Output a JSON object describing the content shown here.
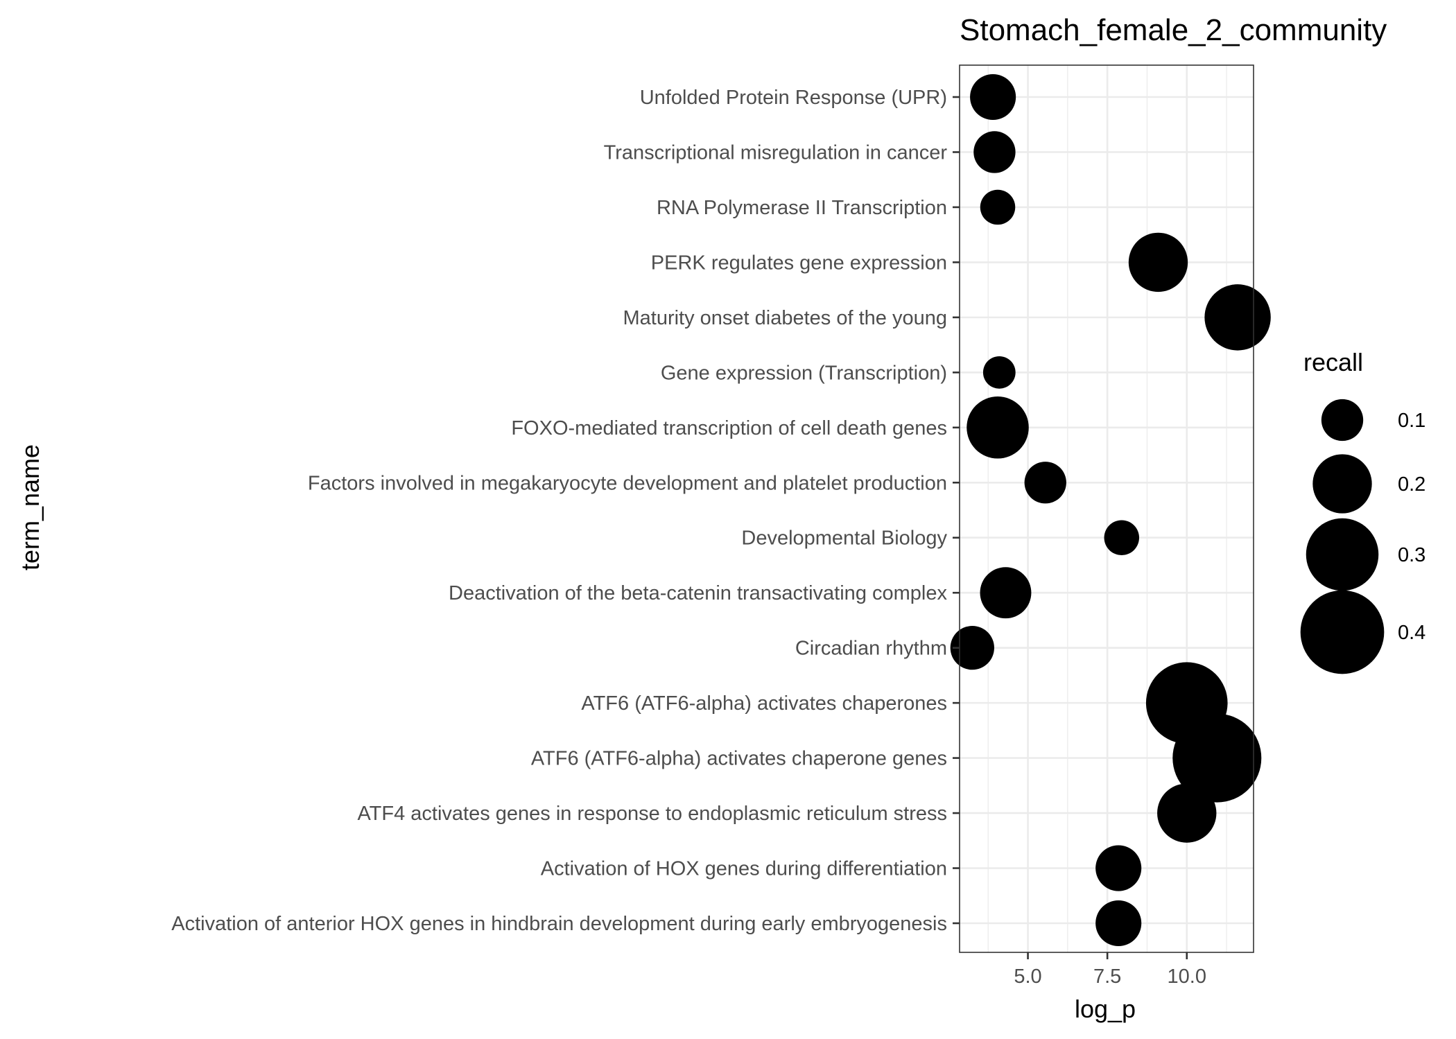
{
  "chart_data": {
    "type": "scatter",
    "title": "Stomach_female_2_community",
    "xlabel": "log_p",
    "ylabel": "term_name",
    "xlim": [
      2.85,
      12.1
    ],
    "x_ticks": [
      5.0,
      7.5,
      10.0
    ],
    "x_tick_labels": [
      "5.0",
      "7.5",
      "10.0"
    ],
    "grid": true,
    "legend": {
      "title": "recall",
      "placement": "right",
      "values": [
        0.1,
        0.2,
        0.3,
        0.4
      ],
      "labels": [
        "0.1",
        "0.2",
        "0.3",
        "0.4"
      ]
    },
    "terms": [
      "Unfolded Protein Response (UPR)",
      "Transcriptional misregulation in cancer",
      "RNA Polymerase II Transcription",
      "PERK regulates gene expression",
      "Maturity onset diabetes of the young",
      "Gene expression (Transcription)",
      "FOXO-mediated transcription of cell death genes",
      "Factors involved in megakaryocyte development and platelet production",
      "Developmental Biology",
      "Deactivation of the beta-catenin transactivating complex",
      "Circadian rhythm",
      "ATF6 (ATF6-alpha) activates chaperones",
      "ATF6 (ATF6-alpha) activates chaperone genes",
      "ATF4 activates genes in response to endoplasmic reticulum  stress",
      "Activation of HOX genes during differentiation",
      "Activation of anterior HOX genes in hindbrain development during early embryogenesis"
    ],
    "points": [
      {
        "term": "Unfolded Protein Response (UPR)",
        "log_p": 3.9,
        "recall": 0.12
      },
      {
        "term": "Transcriptional misregulation in cancer",
        "log_p": 3.95,
        "recall": 0.1
      },
      {
        "term": "RNA Polymerase II Transcription",
        "log_p": 4.05,
        "recall": 0.07
      },
      {
        "term": "PERK regulates gene expression",
        "log_p": 9.1,
        "recall": 0.2
      },
      {
        "term": "Maturity onset diabetes of the young",
        "log_p": 11.6,
        "recall": 0.25
      },
      {
        "term": "Gene expression (Transcription)",
        "log_p": 4.1,
        "recall": 0.06
      },
      {
        "term": "FOXO-mediated transcription of cell death genes",
        "log_p": 4.05,
        "recall": 0.22
      },
      {
        "term": "Factors involved in megakaryocyte development and platelet production",
        "log_p": 5.55,
        "recall": 0.1
      },
      {
        "term": "Developmental Biology",
        "log_p": 7.95,
        "recall": 0.07
      },
      {
        "term": "Deactivation of the beta-catenin transactivating complex",
        "log_p": 4.3,
        "recall": 0.15
      },
      {
        "term": "Circadian rhythm",
        "log_p": 3.25,
        "recall": 0.11
      },
      {
        "term": "ATF6 (ATF6-alpha) activates chaperones",
        "log_p": 10.0,
        "recall": 0.38
      },
      {
        "term": "ATF6 (ATF6-alpha) activates chaperone genes",
        "log_p": 10.95,
        "recall": 0.45
      },
      {
        "term": "ATF4 activates genes in response to endoplasmic reticulum  stress",
        "log_p": 10.0,
        "recall": 0.2
      },
      {
        "term": "Activation of HOX genes during differentiation",
        "log_p": 7.85,
        "recall": 0.12
      },
      {
        "term": "Activation of anterior HOX genes in hindbrain development during early embryogenesis",
        "log_p": 7.85,
        "recall": 0.12
      }
    ]
  }
}
